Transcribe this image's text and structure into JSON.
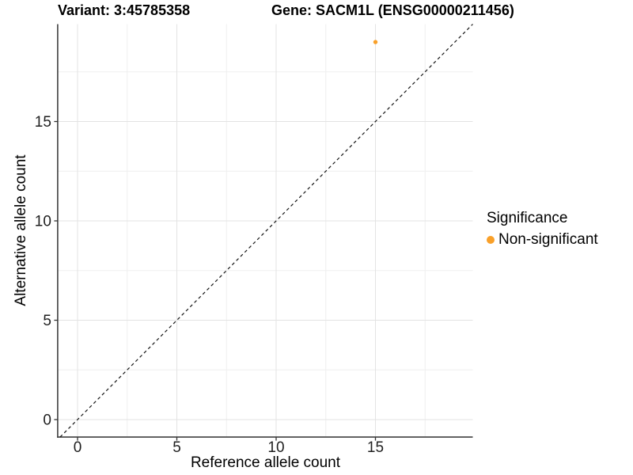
{
  "chart_data": {
    "type": "scatter",
    "title_left": "Variant: 3:45785358",
    "title_right": "Gene: SACM1L (ENSG00000211456)",
    "xlabel": "Reference allele count",
    "ylabel": "Alternative allele count",
    "x_ticks": [
      0,
      5,
      10,
      15
    ],
    "y_ticks": [
      0,
      5,
      10,
      15
    ],
    "xlim": [
      -1,
      19.9
    ],
    "ylim": [
      -0.88,
      19.9
    ],
    "grid": true,
    "legend_position": "right",
    "points": [
      {
        "x": 15,
        "y": 19,
        "series": "Non-significant",
        "color": "#F9A029"
      }
    ],
    "identity_line": {
      "equation": "y = x",
      "style": "dashed",
      "color": "#141414"
    },
    "legend": {
      "title": "Significance",
      "entries": [
        {
          "label": "Non-significant",
          "color": "#F9A029"
        }
      ]
    }
  },
  "colors": {
    "background": "#FFFFFF",
    "grid_major": "#E3E3E3",
    "grid_minor": "#EFEFEF",
    "axis_line": "#3F3F3F",
    "tick_mark": "#333333",
    "tick_label": "#1F1F1F",
    "point_orange": "#F9A029"
  }
}
